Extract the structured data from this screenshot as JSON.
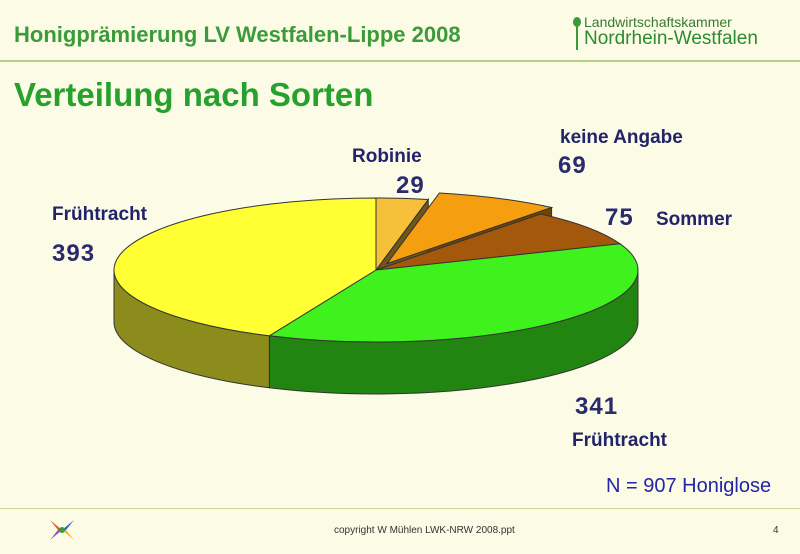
{
  "header": {
    "title": "Honigprämierung LV Westfalen-Lippe 2008",
    "logo_line1": "Landwirtschaftskammer",
    "logo_line2": "Nordrhein-Westfalen"
  },
  "page_title": "Verteilung nach Sorten",
  "chart_data": {
    "type": "pie",
    "title": "",
    "categories": [
      "Robinie",
      "keine Angabe",
      "Sommer",
      "Frühtracht",
      "Frühtracht"
    ],
    "values": [
      29,
      69,
      75,
      341,
      393
    ],
    "slices": [
      {
        "label": "Robinie",
        "value": 29,
        "color": "#f7c03a"
      },
      {
        "label": "keine Angabe",
        "value": 69,
        "color": "#f59e10",
        "exploded": true
      },
      {
        "label": "Sommer",
        "value": 75,
        "color": "#a3580b"
      },
      {
        "label": "Frühtracht",
        "value": 341,
        "color": "#3ff21e"
      },
      {
        "label": "Frühtracht",
        "value": 393,
        "color": "#ffff33"
      }
    ],
    "total_label": "N = 907 Honiglose"
  },
  "labels": {
    "robinie_name": "Robinie",
    "robinie_value": "29",
    "keine_name": "keine Angabe",
    "keine_value": "69",
    "sommer_value": "75",
    "sommer_name": "Sommer",
    "frueh_left_name": "Frühtracht",
    "frueh_left_value": "393",
    "frueh_right_value": "341",
    "frueh_right_name": "Frühtracht"
  },
  "footer": {
    "copyright": "copyright W Mühlen LWK-NRW 2008.ppt",
    "page_number": "4"
  }
}
